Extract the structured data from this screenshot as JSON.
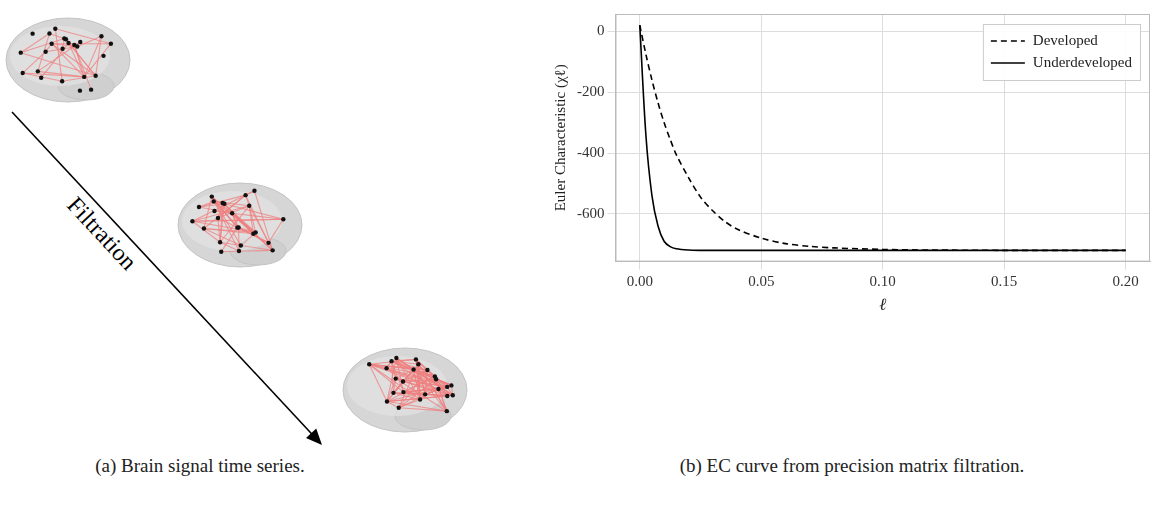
{
  "panel_a": {
    "arrow_label": "Filtration",
    "caption": "(a) Brain signal time series."
  },
  "chart_data": {
    "type": "line",
    "title": "(b) EC curve from precision matrix filtration.",
    "x_label": "ℓ",
    "y_label": "Euler Characteristic (χℓ)",
    "x": [
      0,
      0.0025,
      0.005,
      0.0075,
      0.01,
      0.0125,
      0.015,
      0.02,
      0.025,
      0.03,
      0.035,
      0.04,
      0.05,
      0.06,
      0.07,
      0.08,
      0.1,
      0.12,
      0.15,
      0.2
    ],
    "series": [
      {
        "name": "Developed",
        "color": "#000000",
        "line_style": "dashed",
        "values": [
          20,
          -75,
          -160,
          -235,
          -300,
          -355,
          -405,
          -480,
          -545,
          -590,
          -625,
          -650,
          -680,
          -698,
          -707,
          -712,
          -717,
          -719,
          -720,
          -720
        ]
      },
      {
        "name": "Underdeveloped",
        "color": "#000000",
        "line_style": "solid",
        "values": [
          20,
          -340,
          -540,
          -640,
          -690,
          -708,
          -715,
          -719,
          -720,
          -720,
          -720,
          -720,
          -720,
          -720,
          -720,
          -720,
          -720,
          -720,
          -720,
          -720
        ]
      }
    ],
    "xlim": [
      -0.01,
      0.21
    ],
    "xticks": [
      {
        "value": 0,
        "label": "0.00"
      },
      0.05,
      {
        "value": 0.1,
        "label": "0.10"
      },
      0.15,
      {
        "value": 0.2,
        "label": "0.20"
      }
    ],
    "ylim": [
      -757,
      57
    ],
    "yticks": [
      -600,
      -400,
      -200,
      0
    ],
    "grid": true,
    "legend": "upper right"
  }
}
